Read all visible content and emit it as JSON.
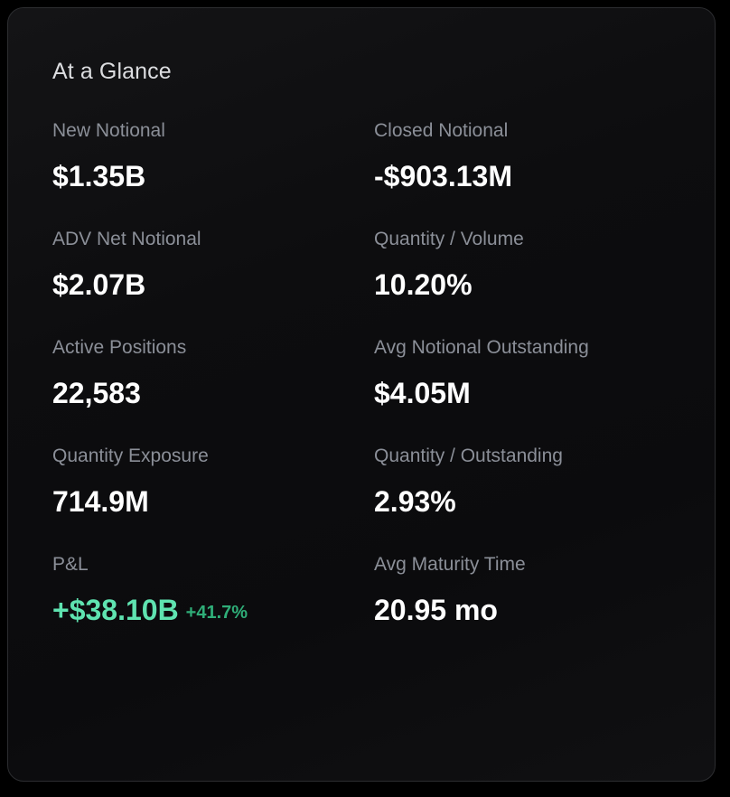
{
  "card": {
    "title": "At a Glance"
  },
  "colors": {
    "background": "#000000",
    "card": "#0d0d0f",
    "label": "#8b8f98",
    "value": "#ffffff",
    "positive": "#5fe3b0",
    "positive_change": "#2fae78"
  },
  "metrics": {
    "new_notional": {
      "label": "New Notional",
      "value": "$1.35B"
    },
    "closed_notional": {
      "label": "Closed Notional",
      "value": "-$903.13M"
    },
    "adv_net_notional": {
      "label": "ADV Net Notional",
      "value": "$2.07B"
    },
    "quantity_volume": {
      "label": "Quantity / Volume",
      "value": "10.20%"
    },
    "active_positions": {
      "label": "Active Positions",
      "value": "22,583"
    },
    "avg_notional_outstanding": {
      "label": "Avg Notional Outstanding",
      "value": "$4.05M"
    },
    "quantity_exposure": {
      "label": "Quantity Exposure",
      "value": "714.9M"
    },
    "quantity_outstanding": {
      "label": "Quantity / Outstanding",
      "value": "2.93%"
    },
    "pnl": {
      "label": "P&L",
      "value": "+$38.10B",
      "change": "+41.7%"
    },
    "avg_maturity_time": {
      "label": "Avg Maturity Time",
      "value": "20.95 mo"
    }
  }
}
